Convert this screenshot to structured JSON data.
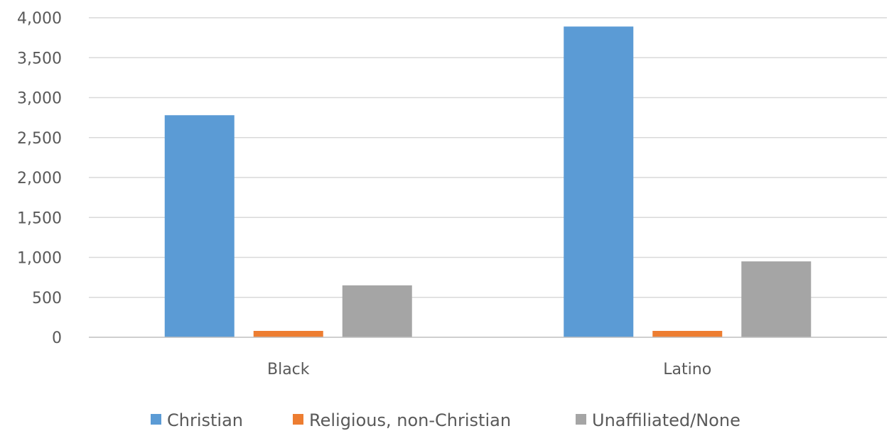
{
  "chart_data": {
    "type": "bar",
    "title": "",
    "xlabel": "",
    "ylabel": "",
    "categories": [
      "Black",
      "Latino"
    ],
    "series": [
      {
        "name": "Christian",
        "values": [
          2780,
          3890
        ],
        "color": "#5b9bd5"
      },
      {
        "name": "Religious, non-Christian",
        "values": [
          80,
          80
        ],
        "color": "#ed7d31"
      },
      {
        "name": "Unaffiliated/None",
        "values": [
          650,
          950
        ],
        "color": "#a5a5a5"
      }
    ],
    "ylim": [
      0,
      4000
    ],
    "yticks": [
      0,
      500,
      1000,
      1500,
      2000,
      2500,
      3000,
      3500,
      4000
    ],
    "ytick_labels": [
      "0",
      "500",
      "1,000",
      "1,500",
      "2,000",
      "2,500",
      "3,000",
      "3,500",
      "4,000"
    ],
    "grid": true,
    "legend_position": "bottom"
  }
}
